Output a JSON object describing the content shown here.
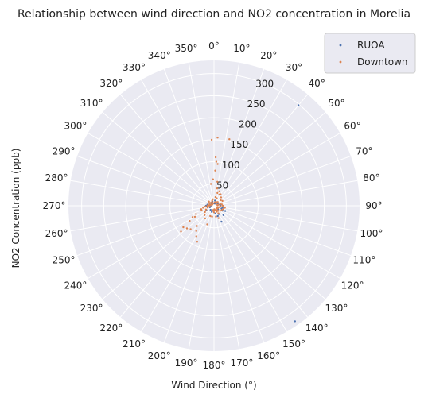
{
  "chart_data": {
    "type": "scatter",
    "projection": "polar",
    "title": "Relationship between wind direction and NO2 concentration in Morelia",
    "xlabel": "Wind Direction (°)",
    "ylabel": "NO2 Concentration (ppb)",
    "theta_zero": "N",
    "theta_direction": "clockwise",
    "theta_ticks": [
      "0°",
      "10°",
      "20°",
      "30°",
      "40°",
      "50°",
      "60°",
      "70°",
      "80°",
      "90°",
      "100°",
      "110°",
      "120°",
      "130°",
      "140°",
      "150°",
      "160°",
      "170°",
      "180°",
      "190°",
      "200°",
      "210°",
      "220°",
      "230°",
      "240°",
      "250°",
      "260°",
      "270°",
      "280°",
      "290°",
      "300°",
      "310°",
      "320°",
      "330°",
      "340°",
      "350°"
    ],
    "r_ticks": [
      50,
      100,
      150,
      200,
      250,
      300
    ],
    "rlim": [
      0,
      330
    ],
    "grid": true,
    "legend_position": "top-right",
    "colors": {
      "background": "#eaeaf2",
      "grid": "#ffffff",
      "ruoa": "#4c72b0",
      "downtown": "#dd8452"
    },
    "series": [
      {
        "name": "RUOA",
        "color": "#4c72b0",
        "points": [
          [
            40,
            298
          ],
          [
            145,
            320
          ],
          [
            155,
            40
          ],
          [
            90,
            15
          ],
          [
            100,
            20
          ],
          [
            110,
            18
          ],
          [
            120,
            22
          ],
          [
            130,
            12
          ],
          [
            160,
            25
          ],
          [
            170,
            18
          ],
          [
            180,
            10
          ],
          [
            200,
            15
          ],
          [
            220,
            12
          ],
          [
            240,
            20
          ],
          [
            260,
            8
          ],
          [
            270,
            18
          ],
          [
            280,
            15
          ],
          [
            300,
            12
          ],
          [
            320,
            8
          ],
          [
            340,
            10
          ],
          [
            10,
            12
          ],
          [
            30,
            6
          ],
          [
            60,
            10
          ],
          [
            80,
            14
          ],
          [
            115,
            28
          ],
          [
            135,
            30
          ],
          [
            150,
            22
          ],
          [
            250,
            10
          ],
          [
            290,
            8
          ],
          [
            5,
            5
          ]
        ]
      },
      {
        "name": "Downtown",
        "color": "#dd8452",
        "points": [
          [
            358,
            150
          ],
          [
            3,
            155
          ],
          [
            13,
            155
          ],
          [
            2,
            110
          ],
          [
            3,
            100
          ],
          [
            5,
            95
          ],
          [
            2,
            80
          ],
          [
            358,
            60
          ],
          [
            8,
            55
          ],
          [
            352,
            50
          ],
          [
            10,
            40
          ],
          [
            20,
            35
          ],
          [
            15,
            30
          ],
          [
            25,
            28
          ],
          [
            30,
            30
          ],
          [
            40,
            25
          ],
          [
            50,
            20
          ],
          [
            60,
            22
          ],
          [
            70,
            15
          ],
          [
            80,
            18
          ],
          [
            90,
            20
          ],
          [
            100,
            25
          ],
          [
            110,
            22
          ],
          [
            120,
            20
          ],
          [
            130,
            18
          ],
          [
            140,
            15
          ],
          [
            150,
            20
          ],
          [
            160,
            30
          ],
          [
            170,
            25
          ],
          [
            180,
            15
          ],
          [
            190,
            25
          ],
          [
            200,
            45
          ],
          [
            205,
            90
          ],
          [
            210,
            80
          ],
          [
            215,
            70
          ],
          [
            220,
            60
          ],
          [
            225,
            75
          ],
          [
            230,
            80
          ],
          [
            232,
            95
          ],
          [
            235,
            85
          ],
          [
            238,
            65
          ],
          [
            240,
            50
          ],
          [
            242,
            55
          ],
          [
            245,
            45
          ],
          [
            250,
            30
          ],
          [
            255,
            30
          ],
          [
            260,
            25
          ],
          [
            265,
            20
          ],
          [
            270,
            15
          ],
          [
            275,
            12
          ],
          [
            280,
            10
          ],
          [
            290,
            8
          ],
          [
            300,
            12
          ],
          [
            310,
            15
          ],
          [
            320,
            10
          ],
          [
            330,
            8
          ],
          [
            340,
            12
          ],
          [
            350,
            15
          ],
          [
            10,
            20
          ],
          [
            20,
            18
          ],
          [
            45,
            12
          ],
          [
            75,
            10
          ],
          [
            95,
            15
          ],
          [
            105,
            12
          ],
          [
            125,
            10
          ],
          [
            135,
            8
          ],
          [
            145,
            12
          ],
          [
            155,
            15
          ],
          [
            165,
            10
          ],
          [
            175,
            8
          ],
          [
            185,
            12
          ],
          [
            195,
            10
          ],
          [
            200,
            25
          ],
          [
            215,
            35
          ],
          [
            225,
            30
          ],
          [
            235,
            25
          ],
          [
            245,
            20
          ],
          [
            255,
            15
          ],
          [
            265,
            10
          ],
          [
            285,
            5
          ],
          [
            315,
            5
          ],
          [
            345,
            6
          ],
          [
            15,
            8
          ],
          [
            35,
            10
          ],
          [
            55,
            6
          ],
          [
            85,
            8
          ],
          [
            115,
            10
          ]
        ]
      }
    ]
  }
}
